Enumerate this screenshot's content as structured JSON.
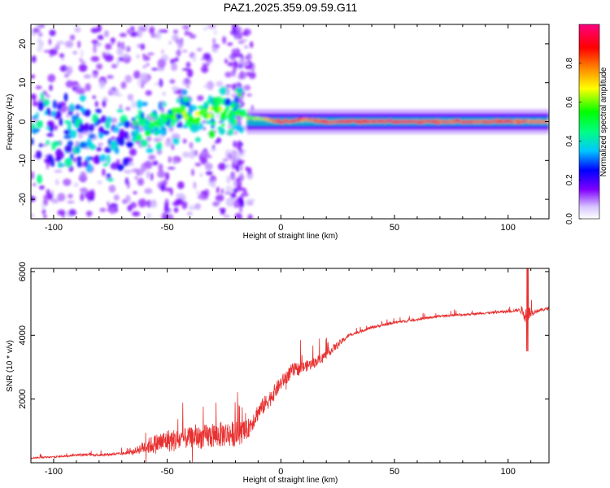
{
  "figure_title": "PAZ1.2025.359.09.59.G11",
  "chart_data": [
    {
      "type": "heatmap",
      "title": "PAZ1.2025.359.09.59.G11",
      "xlabel": "Height of straight line (km)",
      "ylabel": "Frequency (Hz)",
      "xlim": [
        -110,
        118
      ],
      "ylim": [
        -25,
        25
      ],
      "xticks": [
        -100,
        -50,
        0,
        50,
        100
      ],
      "xtick_labels": [
        "-100",
        "-50",
        "0",
        "50",
        "100"
      ],
      "yticks": [
        -20,
        -10,
        0,
        10,
        20
      ],
      "ytick_labels": [
        "-20",
        "-10",
        "0",
        "10",
        "20"
      ],
      "ridge": {
        "description": "dominant frequency ridge of normalized spectral amplitude",
        "x": [
          -95,
          -85,
          -75,
          -70,
          -65,
          -60,
          -55,
          -50,
          -45,
          -40,
          -35,
          -30,
          -25,
          -20,
          -15,
          -10,
          0,
          10,
          20,
          25,
          50,
          75,
          100,
          118
        ],
        "y": [
          -2,
          -3,
          -6,
          -4,
          -3,
          -1,
          0,
          1,
          2,
          1,
          2,
          3,
          2,
          3,
          1,
          1,
          0,
          0.5,
          0,
          0,
          0,
          0,
          0,
          0
        ],
        "amplitude": [
          0.15,
          0.2,
          0.3,
          0.35,
          0.35,
          0.4,
          0.45,
          0.5,
          0.55,
          0.6,
          0.6,
          0.6,
          0.55,
          0.5,
          0.55,
          0.6,
          0.9,
          0.8,
          0.85,
          0.85,
          0.9,
          0.85,
          0.85,
          0.8
        ]
      },
      "colorbar": {
        "label": "Normalized spectral amplitude",
        "range": [
          0,
          1
        ],
        "ticks": [
          0.0,
          0.2,
          0.4,
          0.6,
          0.8
        ],
        "tick_labels": [
          "0.0",
          "0.2",
          "0.4",
          "0.6",
          "0.8"
        ],
        "colors": [
          "#ffffff",
          "#d0c0ff",
          "#7000ff",
          "#0000ff",
          "#00ffff",
          "#00ff00",
          "#ffff00",
          "#ff8000",
          "#ff0000",
          "#ff0080"
        ]
      }
    },
    {
      "type": "line",
      "xlabel": "Height of straight line (km)",
      "ylabel": "SNR (10 * v/v)",
      "xlim": [
        -110,
        118
      ],
      "ylim": [
        0,
        6100
      ],
      "xticks": [
        -100,
        -50,
        0,
        50,
        100
      ],
      "xtick_labels": [
        "-100",
        "-50",
        "0",
        "50",
        "100"
      ],
      "yticks": [
        2000,
        4000,
        6000
      ],
      "ytick_labels": [
        "2000",
        "4000",
        "6000"
      ],
      "color": "#e83030",
      "series": [
        {
          "name": "SNR",
          "x": [
            -110,
            -100,
            -90,
            -80,
            -70,
            -65,
            -60,
            -55,
            -50,
            -45,
            -40,
            -35,
            -30,
            -25,
            -20,
            -15,
            -10,
            -5,
            0,
            5,
            10,
            15,
            20,
            25,
            30,
            40,
            50,
            60,
            70,
            80,
            90,
            100,
            105,
            108,
            110,
            112,
            118
          ],
          "y": [
            150,
            180,
            250,
            250,
            280,
            350,
            500,
            600,
            700,
            700,
            800,
            800,
            850,
            900,
            900,
            1000,
            1600,
            2000,
            2500,
            2900,
            3000,
            3150,
            3400,
            3700,
            4000,
            4250,
            4400,
            4500,
            4600,
            4650,
            4700,
            4750,
            4800,
            4700,
            4700,
            4750,
            4850
          ],
          "noise": [
            50,
            70,
            80,
            90,
            100,
            150,
            500,
            700,
            800,
            800,
            700,
            800,
            900,
            900,
            900,
            700,
            600,
            600,
            500,
            500,
            400,
            350,
            300,
            250,
            100,
            100,
            100,
            90,
            80,
            80,
            80,
            90,
            100,
            800,
            300,
            120,
            100
          ]
        }
      ]
    }
  ]
}
